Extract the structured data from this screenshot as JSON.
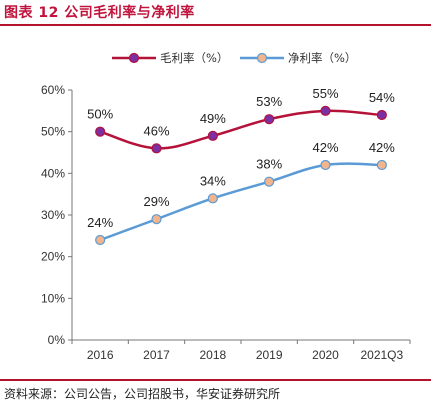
{
  "header": {
    "title": "图表 12 公司毛利率与净利率"
  },
  "footer": {
    "source": "资料来源：公司公告，公司招股书，华安证券研究所"
  },
  "chart_data": {
    "type": "line",
    "categories": [
      "2016",
      "2017",
      "2018",
      "2019",
      "2020",
      "2021Q3"
    ],
    "series": [
      {
        "name": "毛利率（%）",
        "values": [
          50,
          46,
          49,
          53,
          55,
          54
        ],
        "labels": [
          "50%",
          "46%",
          "49%",
          "53%",
          "55%",
          "54%"
        ],
        "color": "#b5123a",
        "marker_color": "#7b2fa3"
      },
      {
        "name": "净利率（%）",
        "values": [
          24,
          29,
          34,
          38,
          42,
          42
        ],
        "labels": [
          "24%",
          "29%",
          "34%",
          "38%",
          "42%",
          "42%"
        ],
        "color": "#5b9bd5",
        "marker_color": "#f2b48c"
      }
    ],
    "ylim": [
      0,
      60
    ],
    "yticks": [
      0,
      10,
      20,
      30,
      40,
      50,
      60
    ],
    "ytick_labels": [
      "0%",
      "10%",
      "20%",
      "30%",
      "40%",
      "50%",
      "60%"
    ],
    "legend": "top",
    "grid": false
  }
}
